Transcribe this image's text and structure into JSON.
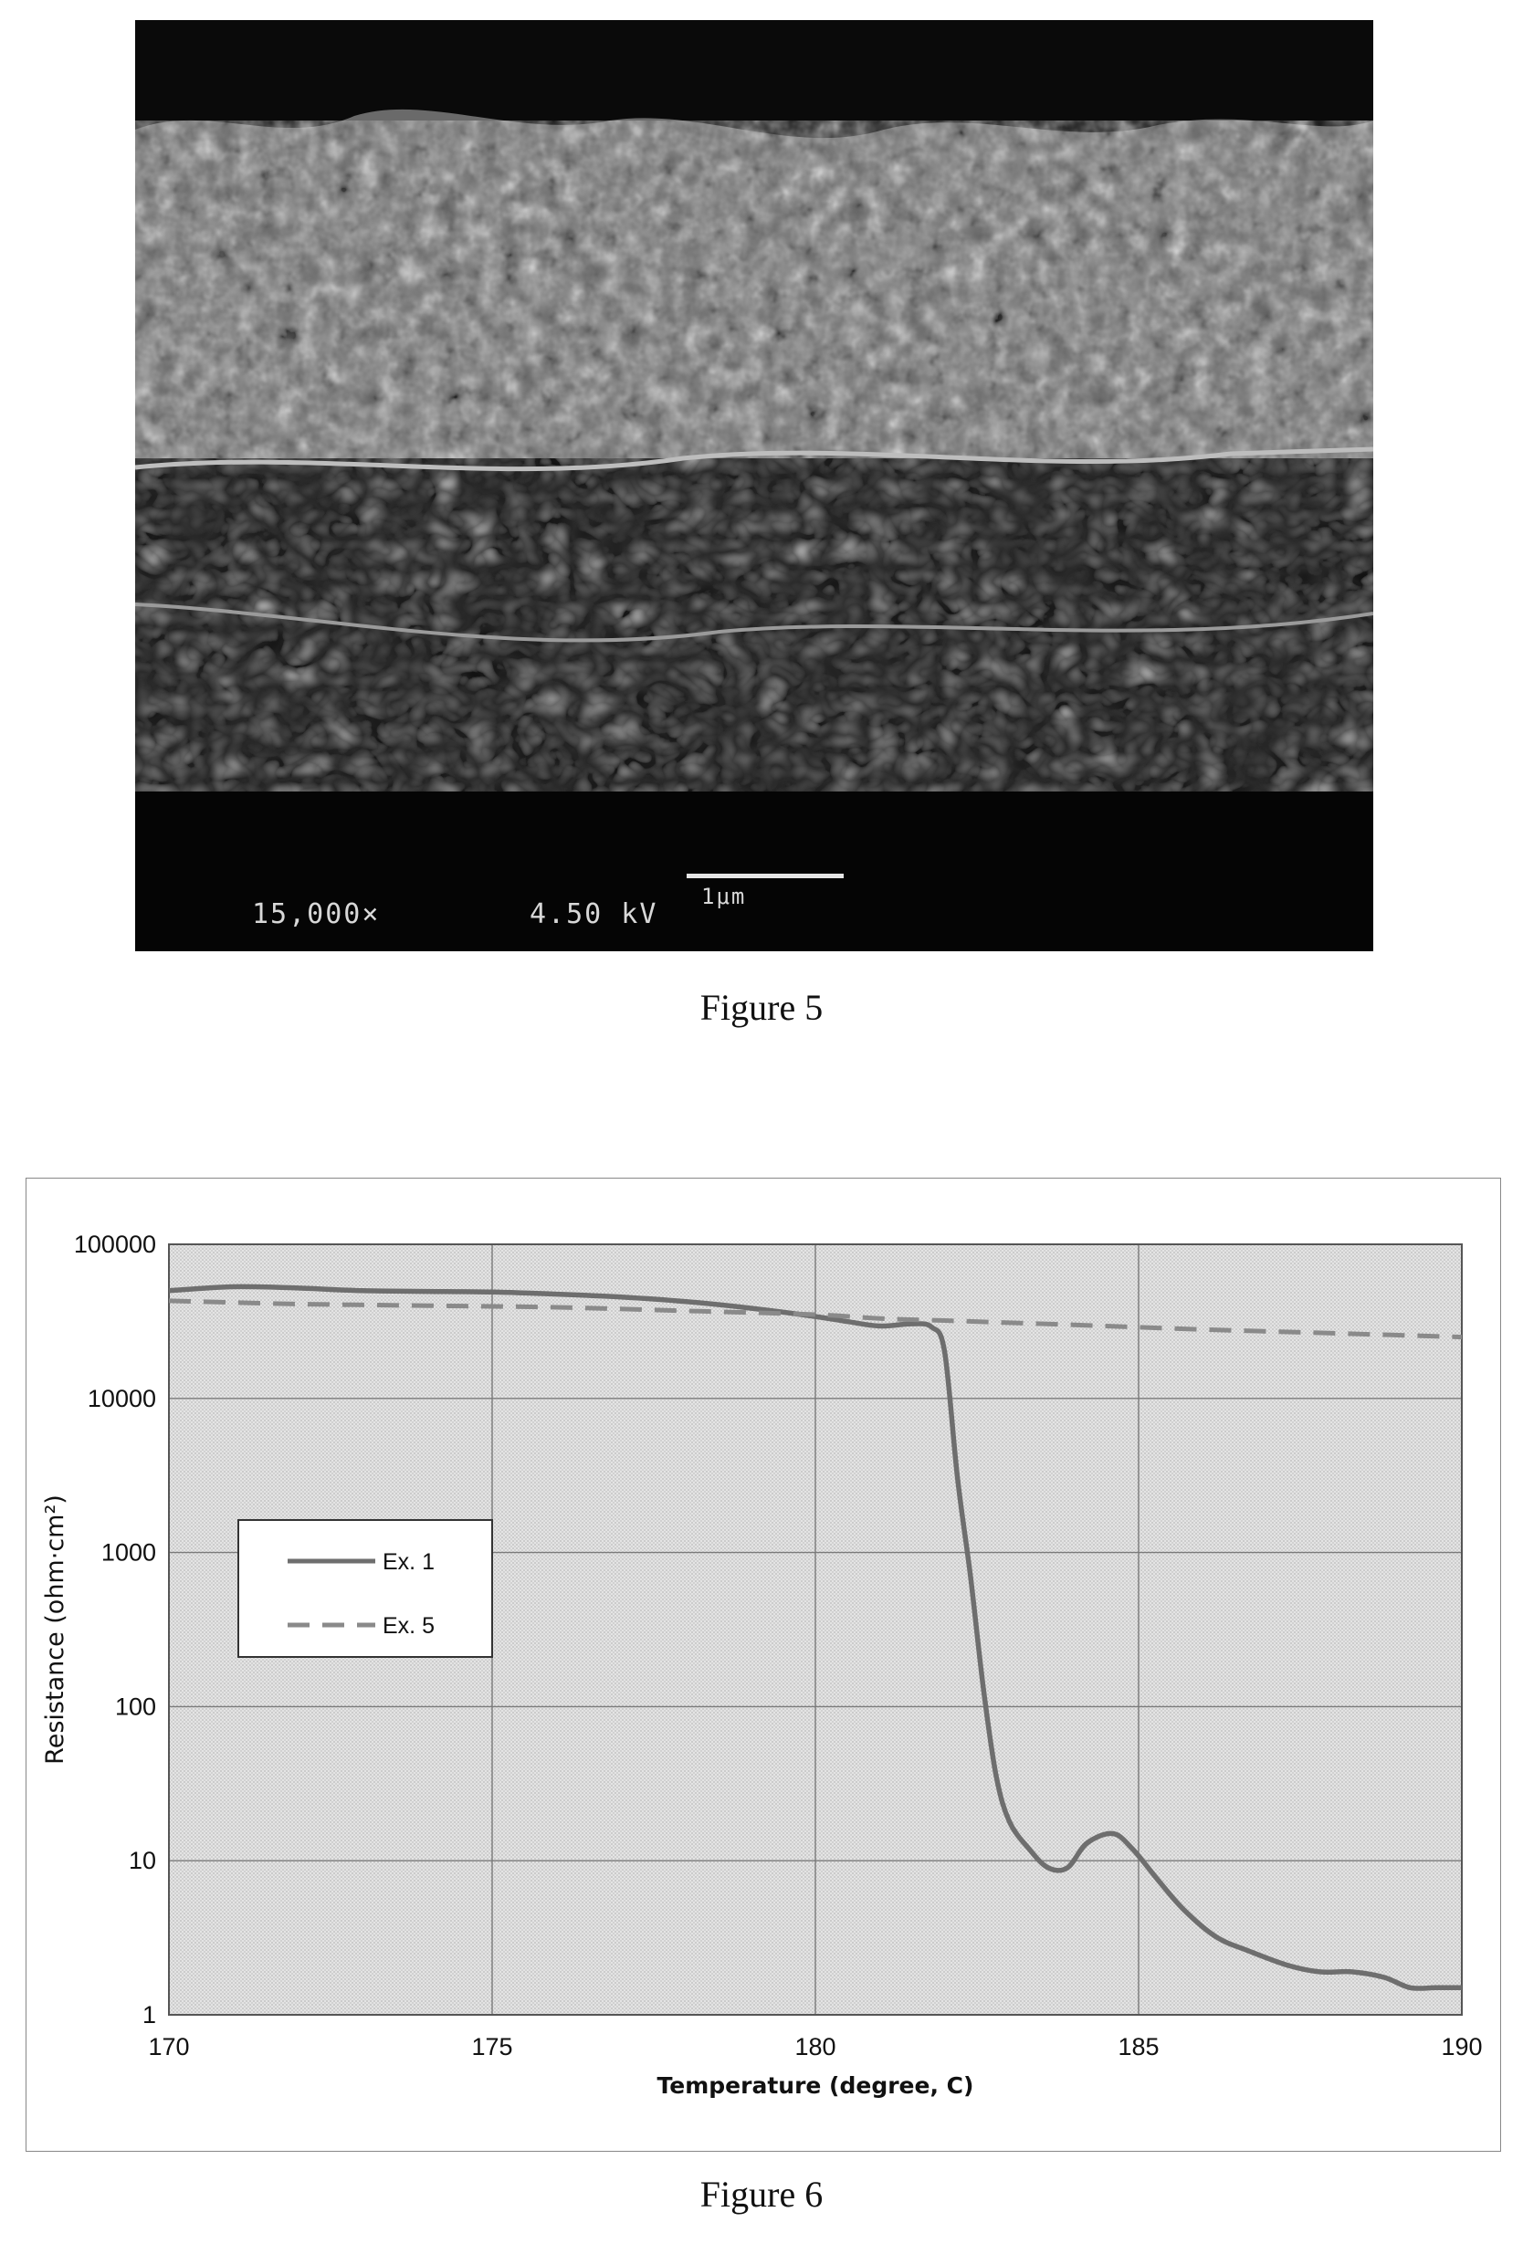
{
  "figures": {
    "figure5": {
      "caption": "Figure 5",
      "magnification": "15,000×",
      "voltage": "4.50 kV",
      "scale_label": "1μm"
    },
    "figure6": {
      "caption": "Figure 6"
    }
  },
  "chart_data": {
    "type": "line",
    "title": "",
    "xlabel": "Temperature (degree, C)",
    "ylabel": "Resistance (ohm·cm²)",
    "xlim": [
      170,
      190
    ],
    "ylim": [
      1,
      100000
    ],
    "y_scale": "log",
    "x_ticks": [
      "170",
      "175",
      "180",
      "185",
      "190"
    ],
    "y_ticks": [
      "1",
      "10",
      "100",
      "1000",
      "10000",
      "100000"
    ],
    "grid": true,
    "legend_position": "left-middle",
    "series": [
      {
        "name": "Ex. 1",
        "style": "solid",
        "color": "#6e6e6e",
        "x": [
          170,
          171,
          172,
          173,
          174,
          175,
          176,
          177,
          178,
          179,
          180,
          180.5,
          181,
          181.5,
          181.8,
          182,
          182.2,
          182.4,
          182.6,
          182.8,
          183,
          183.3,
          183.6,
          183.9,
          184.2,
          184.6,
          184.9,
          185.3,
          185.7,
          186.2,
          186.7,
          187.3,
          187.8,
          188.3,
          188.8,
          189.2,
          189.6,
          190
        ],
        "y": [
          50000,
          53000,
          52000,
          50000,
          49500,
          49000,
          47500,
          45500,
          42500,
          38500,
          34000,
          31500,
          29500,
          30500,
          29000,
          20000,
          3000,
          700,
          130,
          35,
          18,
          12,
          9,
          9,
          13,
          15,
          12,
          7.5,
          4.8,
          3.2,
          2.6,
          2.1,
          1.9,
          1.9,
          1.75,
          1.5,
          1.5,
          1.5
        ]
      },
      {
        "name": "Ex. 5",
        "style": "dashed",
        "color": "#8a8a8a",
        "x": [
          170,
          172,
          174,
          176,
          178,
          180,
          181,
          182,
          184,
          186,
          188,
          190
        ],
        "y": [
          43000,
          41000,
          40000,
          39000,
          37000,
          35000,
          33000,
          32000,
          30000,
          28000,
          26500,
          25000
        ]
      }
    ]
  }
}
